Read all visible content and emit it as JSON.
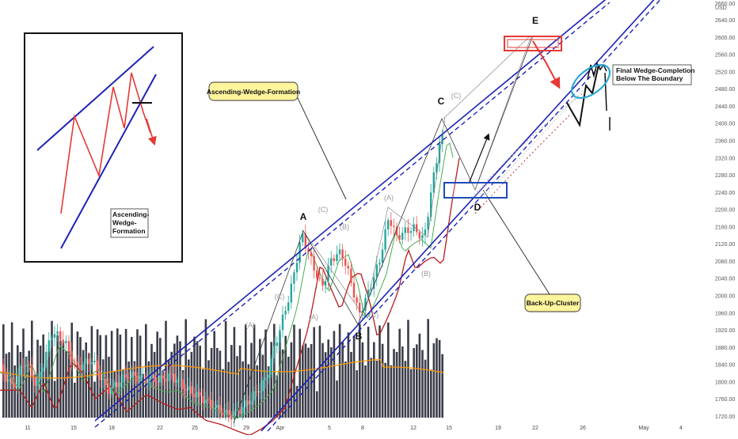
{
  "chart_data": {
    "type": "candlestick",
    "currency": "USD",
    "y_ticks": [
      "2660.00",
      "2640.00",
      "2600.00",
      "2560.00",
      "2520.00",
      "2480.00",
      "2440.00",
      "2400.00",
      "2360.00",
      "2320.00",
      "2280.00",
      "2240.00",
      "2200.00",
      "2160.00",
      "2120.00",
      "2080.00",
      "2040.00",
      "2000.00",
      "1960.00",
      "1920.00",
      "1880.00",
      "1840.00",
      "1800.00",
      "1760.00",
      "1720.00"
    ],
    "y_tick_values": [
      2660,
      2640,
      2600,
      2560,
      2520,
      2480,
      2440,
      2400,
      2360,
      2320,
      2280,
      2240,
      2200,
      2160,
      2120,
      2080,
      2040,
      2000,
      1960,
      1920,
      1880,
      1840,
      1800,
      1760,
      1720
    ],
    "x_ticks": [
      "11",
      "15",
      "18",
      "22",
      "25",
      "29",
      "Apr",
      "5",
      "8",
      "12",
      "15",
      "19",
      "22",
      "26",
      "May",
      "4"
    ],
    "wave_labels": {
      "major": [
        "A",
        "B",
        "C",
        "D",
        "E"
      ],
      "minor": [
        "(A)",
        "(C)",
        "(B)",
        "(A)",
        "(C)",
        "(C)",
        "(B)",
        "(A)",
        "(C)"
      ]
    },
    "annotations": {
      "inset_label": "Ascending-\nWedge-\nFormation",
      "callout_formation": "Ascending-Wedge-Formation",
      "callout_backup": "Back-Up-Cluster",
      "note_completion": "Final Wedge-Completion\nBelow The Boundary"
    },
    "colors": {
      "up": "#26a69a",
      "down": "#ef5350",
      "channel": "#1c22b8",
      "ma_green": "#4caf50",
      "ma_darkred": "#b71c1c",
      "ma_orange": "#ff9800",
      "callout_fill": "#fff59d",
      "highlight_red": "#e53935",
      "highlight_blue": "#1e4bb8",
      "ellipse": "#29a8d4",
      "volume": "#2a2e39"
    }
  }
}
